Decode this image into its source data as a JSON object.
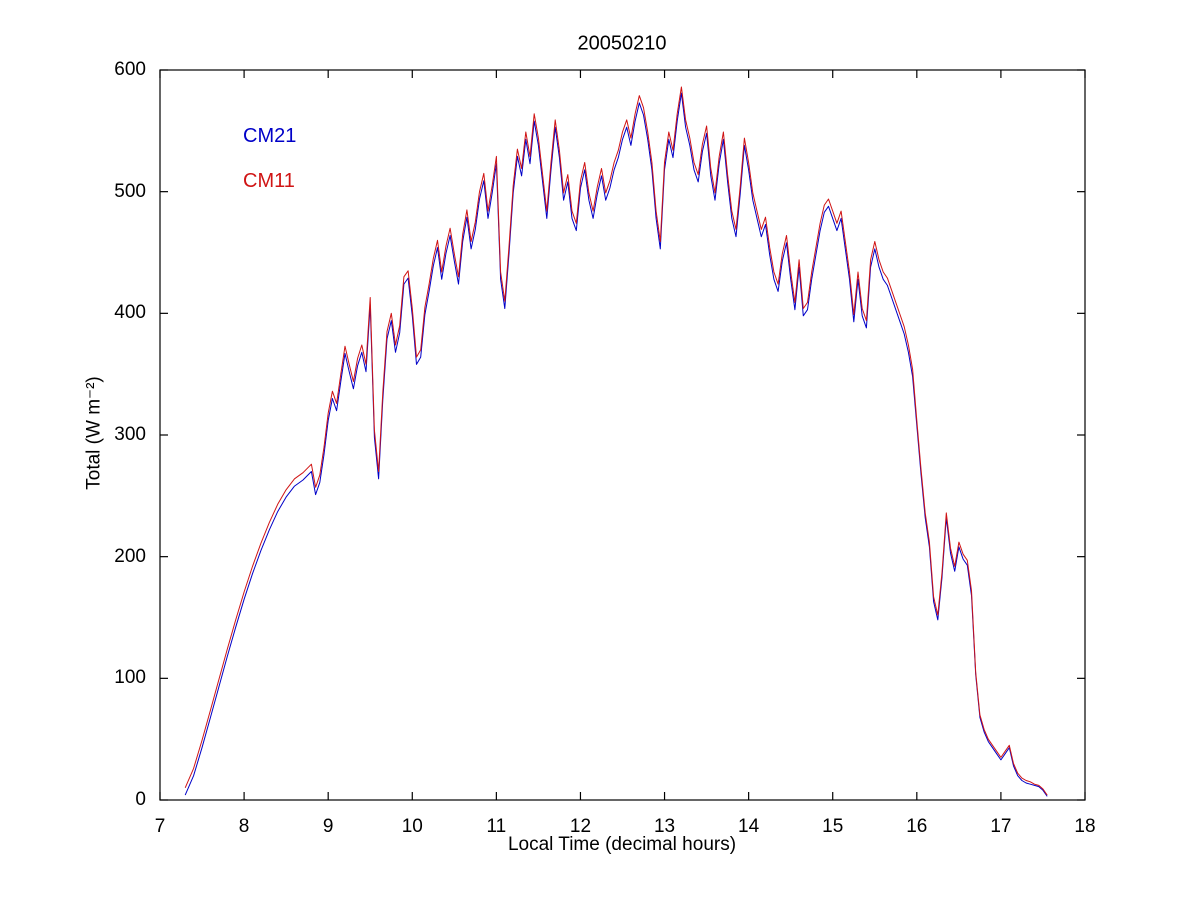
{
  "figure": {
    "title": "20050210",
    "xlabel": "Local Time (decimal hours)",
    "ylabel": "Total (W m⁻²)"
  },
  "legend": {
    "items": [
      {
        "label": "CM21",
        "color": "#0000C8"
      },
      {
        "label": "CM11",
        "color": "#D01414"
      }
    ]
  },
  "chart_data": {
    "type": "line",
    "title": "20050210",
    "xlabel": "Local Time (decimal hours)",
    "ylabel": "Total (W m⁻²)",
    "xlim": [
      7,
      18
    ],
    "ylim": [
      0,
      600
    ],
    "xticks": [
      7,
      8,
      9,
      10,
      11,
      12,
      13,
      14,
      15,
      16,
      17,
      18
    ],
    "yticks": [
      0,
      100,
      200,
      300,
      400,
      500,
      600
    ],
    "grid": false,
    "legend_position": "upper-left-inside",
    "x": [
      7.3,
      7.4,
      7.5,
      7.6,
      7.7,
      7.8,
      7.9,
      8.0,
      8.1,
      8.2,
      8.3,
      8.4,
      8.5,
      8.6,
      8.7,
      8.8,
      8.85,
      8.9,
      8.95,
      9.0,
      9.05,
      9.1,
      9.15,
      9.2,
      9.25,
      9.3,
      9.35,
      9.4,
      9.45,
      9.5,
      9.55,
      9.6,
      9.65,
      9.7,
      9.75,
      9.8,
      9.85,
      9.9,
      9.95,
      10.0,
      10.05,
      10.1,
      10.15,
      10.2,
      10.25,
      10.3,
      10.35,
      10.4,
      10.45,
      10.5,
      10.55,
      10.6,
      10.65,
      10.7,
      10.75,
      10.8,
      10.85,
      10.9,
      10.95,
      11.0,
      11.05,
      11.1,
      11.15,
      11.2,
      11.25,
      11.3,
      11.35,
      11.4,
      11.45,
      11.5,
      11.55,
      11.6,
      11.65,
      11.7,
      11.75,
      11.8,
      11.85,
      11.9,
      11.95,
      12.0,
      12.05,
      12.1,
      12.15,
      12.2,
      12.25,
      12.3,
      12.35,
      12.4,
      12.45,
      12.5,
      12.55,
      12.6,
      12.65,
      12.7,
      12.75,
      12.8,
      12.85,
      12.9,
      12.95,
      13.0,
      13.05,
      13.1,
      13.15,
      13.2,
      13.25,
      13.3,
      13.35,
      13.4,
      13.45,
      13.5,
      13.55,
      13.6,
      13.65,
      13.7,
      13.75,
      13.8,
      13.85,
      13.9,
      13.95,
      14.0,
      14.05,
      14.1,
      14.15,
      14.2,
      14.25,
      14.3,
      14.35,
      14.4,
      14.45,
      14.5,
      14.55,
      14.6,
      14.65,
      14.7,
      14.75,
      14.8,
      14.85,
      14.9,
      14.95,
      15.0,
      15.05,
      15.1,
      15.15,
      15.2,
      15.25,
      15.3,
      15.35,
      15.4,
      15.45,
      15.5,
      15.55,
      15.6,
      15.65,
      15.7,
      15.75,
      15.8,
      15.85,
      15.9,
      15.95,
      16.0,
      16.05,
      16.1,
      16.15,
      16.2,
      16.25,
      16.3,
      16.35,
      16.4,
      16.45,
      16.5,
      16.55,
      16.6,
      16.65,
      16.7,
      16.75,
      16.8,
      16.85,
      16.9,
      16.95,
      17.0,
      17.05,
      17.1,
      17.15,
      17.2,
      17.25,
      17.3,
      17.35,
      17.4,
      17.45,
      17.5,
      17.55
    ],
    "series": [
      {
        "name": "CM21",
        "color": "#0000C8",
        "values": [
          4,
          20,
          43,
          68,
          93,
          118,
          142,
          165,
          186,
          205,
          222,
          237,
          249,
          258,
          263,
          270,
          251,
          261,
          284,
          312,
          330,
          320,
          344,
          367,
          352,
          338,
          357,
          368,
          352,
          407,
          298,
          264,
          329,
          379,
          394,
          368,
          384,
          424,
          429,
          398,
          358,
          364,
          399,
          418,
          439,
          454,
          428,
          449,
          464,
          443,
          424,
          459,
          479,
          453,
          469,
          494,
          509,
          478,
          499,
          523,
          428,
          404,
          449,
          499,
          529,
          513,
          543,
          523,
          558,
          538,
          508,
          478,
          518,
          553,
          528,
          493,
          508,
          478,
          468,
          503,
          518,
          493,
          478,
          498,
          513,
          493,
          503,
          518,
          528,
          543,
          553,
          538,
          558,
          573,
          563,
          543,
          518,
          478,
          453,
          518,
          543,
          528,
          558,
          581,
          553,
          538,
          518,
          508,
          533,
          548,
          513,
          493,
          523,
          543,
          508,
          478,
          463,
          498,
          538,
          518,
          493,
          478,
          463,
          473,
          448,
          428,
          418,
          443,
          458,
          428,
          403,
          438,
          398,
          403,
          428,
          448,
          468,
          483,
          488,
          478,
          468,
          478,
          453,
          428,
          393,
          428,
          398,
          388,
          438,
          453,
          438,
          428,
          423,
          413,
          403,
          393,
          383,
          368,
          348,
          308,
          268,
          232,
          208,
          163,
          148,
          183,
          232,
          203,
          188,
          208,
          198,
          193,
          168,
          103,
          68,
          56,
          48,
          43,
          38,
          33,
          38,
          43,
          28,
          20,
          16,
          14,
          13,
          12,
          11,
          8,
          3
        ]
      },
      {
        "name": "CM11",
        "color": "#D01414",
        "values": [
          10,
          26,
          49,
          74,
          99,
          124,
          148,
          171,
          192,
          211,
          228,
          243,
          255,
          264,
          269,
          276,
          257,
          267,
          290,
          318,
          336,
          326,
          350,
          373,
          358,
          344,
          363,
          374,
          358,
          413,
          304,
          270,
          335,
          385,
          400,
          374,
          390,
          430,
          435,
          404,
          364,
          370,
          405,
          424,
          445,
          460,
          434,
          455,
          470,
          449,
          430,
          465,
          485,
          459,
          475,
          500,
          515,
          484,
          505,
          529,
          434,
          410,
          455,
          505,
          535,
          519,
          549,
          529,
          564,
          544,
          514,
          484,
          524,
          559,
          534,
          499,
          514,
          484,
          474,
          509,
          524,
          499,
          484,
          504,
          519,
          499,
          509,
          524,
          534,
          549,
          559,
          544,
          564,
          579,
          569,
          549,
          524,
          484,
          459,
          524,
          549,
          534,
          564,
          586,
          559,
          544,
          524,
          514,
          539,
          554,
          519,
          499,
          529,
          549,
          514,
          484,
          469,
          504,
          544,
          524,
          499,
          484,
          469,
          479,
          454,
          434,
          424,
          449,
          464,
          434,
          409,
          444,
          404,
          409,
          434,
          454,
          474,
          489,
          494,
          484,
          474,
          484,
          459,
          434,
          399,
          434,
          404,
          394,
          444,
          459,
          444,
          434,
          429,
          419,
          409,
          399,
          389,
          374,
          354,
          312,
          272,
          236,
          212,
          167,
          152,
          187,
          236,
          207,
          192,
          212,
          202,
          197,
          172,
          105,
          70,
          58,
          50,
          45,
          40,
          35,
          40,
          45,
          30,
          22,
          18,
          16,
          15,
          13,
          12,
          9,
          4
        ]
      }
    ]
  }
}
